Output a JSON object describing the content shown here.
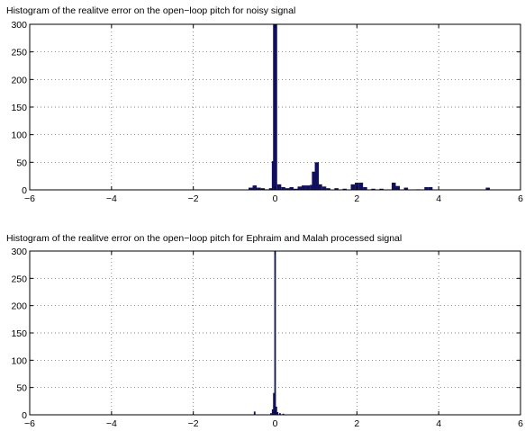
{
  "colors": {
    "bar_fill": "#10105e",
    "axis": "#000000",
    "grid": "#555555",
    "background": "#ffffff"
  },
  "chart_data": [
    {
      "type": "bar",
      "title": "Histogram of the realitve error on the open−loop pitch for noisy signal",
      "xlabel": "",
      "ylabel": "",
      "xlim": [
        -6,
        6
      ],
      "ylim": [
        0,
        300
      ],
      "xticks": [
        -6,
        -4,
        -2,
        0,
        2,
        4,
        6
      ],
      "yticks": [
        0,
        50,
        100,
        150,
        200,
        250,
        300
      ],
      "xtick_labels": [
        "−6",
        "−4",
        "−2",
        "0",
        "2",
        "4",
        "6"
      ],
      "ytick_labels": [
        "0",
        "50",
        "100",
        "150",
        "200",
        "250",
        "300"
      ],
      "grid": true,
      "bin_width": 0.1,
      "bins": [
        {
          "x": -0.6,
          "count": 4
        },
        {
          "x": -0.5,
          "count": 8
        },
        {
          "x": -0.4,
          "count": 4
        },
        {
          "x": -0.3,
          "count": 3
        },
        {
          "x": -0.2,
          "count": 1
        },
        {
          "x": -0.1,
          "count": 3
        },
        {
          "x": -0.03,
          "count": 52
        },
        {
          "x": 0.0,
          "count": 300
        },
        {
          "x": 0.1,
          "count": 10
        },
        {
          "x": 0.2,
          "count": 5
        },
        {
          "x": 0.3,
          "count": 3
        },
        {
          "x": 0.4,
          "count": 5
        },
        {
          "x": 0.5,
          "count": 2
        },
        {
          "x": 0.6,
          "count": 6
        },
        {
          "x": 0.7,
          "count": 8
        },
        {
          "x": 0.8,
          "count": 8
        },
        {
          "x": 0.9,
          "count": 9
        },
        {
          "x": 0.95,
          "count": 33
        },
        {
          "x": 1.02,
          "count": 50
        },
        {
          "x": 1.1,
          "count": 10
        },
        {
          "x": 1.2,
          "count": 6
        },
        {
          "x": 1.3,
          "count": 3
        },
        {
          "x": 1.5,
          "count": 3
        },
        {
          "x": 1.7,
          "count": 2
        },
        {
          "x": 1.9,
          "count": 10
        },
        {
          "x": 2.0,
          "count": 13
        },
        {
          "x": 2.1,
          "count": 13
        },
        {
          "x": 2.2,
          "count": 5
        },
        {
          "x": 2.4,
          "count": 2
        },
        {
          "x": 2.6,
          "count": 2
        },
        {
          "x": 2.9,
          "count": 13
        },
        {
          "x": 3.0,
          "count": 7
        },
        {
          "x": 3.2,
          "count": 4
        },
        {
          "x": 3.5,
          "count": 1
        },
        {
          "x": 3.7,
          "count": 5
        },
        {
          "x": 3.8,
          "count": 5
        },
        {
          "x": 5.2,
          "count": 4
        }
      ]
    },
    {
      "type": "bar",
      "title": "Histogram of the realitve error on the open−loop pitch for Ephraim and Malah processed signal",
      "xlabel": "",
      "ylabel": "",
      "xlim": [
        -6,
        6
      ],
      "ylim": [
        0,
        300
      ],
      "xticks": [
        -6,
        -4,
        -2,
        0,
        2,
        4,
        6
      ],
      "yticks": [
        0,
        50,
        100,
        150,
        200,
        250,
        300
      ],
      "xtick_labels": [
        "−6",
        "−4",
        "−2",
        "0",
        "2",
        "4",
        "6"
      ],
      "ytick_labels": [
        "0",
        "50",
        "100",
        "150",
        "200",
        "250",
        "300"
      ],
      "grid": true,
      "bin_width": 0.04,
      "bins": [
        {
          "x": -0.5,
          "count": 6
        },
        {
          "x": -0.1,
          "count": 3
        },
        {
          "x": -0.06,
          "count": 10
        },
        {
          "x": -0.03,
          "count": 40
        },
        {
          "x": 0.0,
          "count": 300
        },
        {
          "x": 0.03,
          "count": 15
        },
        {
          "x": 0.06,
          "count": 5
        },
        {
          "x": 0.12,
          "count": 3
        },
        {
          "x": 0.2,
          "count": 2
        }
      ]
    }
  ]
}
